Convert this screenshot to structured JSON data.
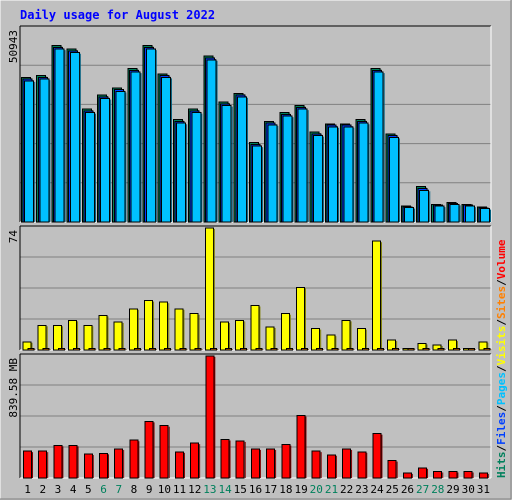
{
  "title": "Daily usage for August 2022",
  "colors": {
    "background": "#c0c0c0",
    "plot": "#c0c0c0",
    "grid": "#808080",
    "title": "#0000ff",
    "hits": "#00805c",
    "files": "#0040ff",
    "pages": "#00c0ff",
    "visits": "#ffff00",
    "sites": "#ff8000",
    "volume": "#ff0000",
    "weekday": "#000000",
    "weekend": "#00805c"
  },
  "chart_data": [
    {
      "type": "bar",
      "panel": "hits-files-pages",
      "ymax_label": "50943",
      "ylim": [
        0,
        55000
      ],
      "series": [
        {
          "name": "Hits",
          "values": [
            41000,
            41500,
            50000,
            49000,
            32000,
            36000,
            38000,
            43500,
            50000,
            42000,
            29000,
            32000,
            47000,
            34000,
            36500,
            22500,
            28500,
            31000,
            33000,
            25500,
            27800,
            27800,
            29000,
            43500,
            25000,
            4500,
            10000,
            5000,
            5500,
            5000,
            4200
          ]
        },
        {
          "name": "Files",
          "values": [
            40500,
            41000,
            49500,
            48500,
            31500,
            35500,
            37500,
            43000,
            49500,
            41500,
            28500,
            31500,
            46500,
            33500,
            36000,
            22000,
            28000,
            30500,
            32500,
            25000,
            27500,
            27500,
            28500,
            43000,
            24500,
            4300,
            9500,
            4800,
            5300,
            4800,
            4000
          ]
        },
        {
          "name": "Pages",
          "values": [
            40000,
            40500,
            49000,
            48000,
            31000,
            35000,
            37000,
            42500,
            49000,
            41000,
            28000,
            31000,
            46000,
            33000,
            35500,
            21500,
            27500,
            30000,
            32000,
            24500,
            27000,
            27000,
            28000,
            42500,
            24000,
            4100,
            9000,
            4500,
            5000,
            4500,
            3800
          ]
        }
      ]
    },
    {
      "type": "bar",
      "panel": "visits-sites",
      "ymax_label": "74",
      "ylim": [
        0,
        74
      ],
      "series": [
        {
          "name": "Visits",
          "values": [
            5,
            15,
            15,
            18,
            15,
            21,
            17,
            25,
            30,
            29,
            25,
            22,
            74,
            17,
            18,
            27,
            14,
            22,
            38,
            13,
            9,
            18,
            13,
            66,
            6,
            1,
            4,
            3,
            6,
            1,
            5
          ]
        },
        {
          "name": "Sites",
          "values": [
            1,
            1,
            1,
            1,
            1,
            1,
            1,
            1,
            1,
            1,
            1,
            1,
            1,
            1,
            1,
            1,
            1,
            1,
            1,
            1,
            1,
            1,
            1,
            1,
            1,
            1,
            1,
            1,
            1,
            1,
            1
          ]
        }
      ]
    },
    {
      "type": "bar",
      "panel": "volume",
      "ymax_label": "839.58 MB",
      "ylim": [
        0,
        839.58
      ],
      "series": [
        {
          "name": "Volume",
          "values": [
            185,
            185,
            225,
            225,
            165,
            170,
            200,
            260,
            390,
            360,
            180,
            240,
            840,
            265,
            255,
            200,
            200,
            230,
            430,
            185,
            160,
            200,
            180,
            305,
            120,
            35,
            70,
            45,
            45,
            45,
            35
          ]
        }
      ]
    }
  ],
  "days": [
    {
      "label": "1",
      "weekend": false
    },
    {
      "label": "2",
      "weekend": false
    },
    {
      "label": "3",
      "weekend": false
    },
    {
      "label": "4",
      "weekend": false
    },
    {
      "label": "5",
      "weekend": false
    },
    {
      "label": "6",
      "weekend": true
    },
    {
      "label": "7",
      "weekend": true
    },
    {
      "label": "8",
      "weekend": false
    },
    {
      "label": "9",
      "weekend": false
    },
    {
      "label": "10",
      "weekend": false
    },
    {
      "label": "11",
      "weekend": false
    },
    {
      "label": "12",
      "weekend": false
    },
    {
      "label": "13",
      "weekend": true
    },
    {
      "label": "14",
      "weekend": true
    },
    {
      "label": "15",
      "weekend": false
    },
    {
      "label": "16",
      "weekend": false
    },
    {
      "label": "17",
      "weekend": false
    },
    {
      "label": "18",
      "weekend": false
    },
    {
      "label": "19",
      "weekend": false
    },
    {
      "label": "20",
      "weekend": true
    },
    {
      "label": "21",
      "weekend": true
    },
    {
      "label": "22",
      "weekend": false
    },
    {
      "label": "23",
      "weekend": false
    },
    {
      "label": "24",
      "weekend": false
    },
    {
      "label": "25",
      "weekend": false
    },
    {
      "label": "26",
      "weekend": false
    },
    {
      "label": "27",
      "weekend": true
    },
    {
      "label": "28",
      "weekend": true
    },
    {
      "label": "29",
      "weekend": false
    },
    {
      "label": "30",
      "weekend": false
    },
    {
      "label": "31",
      "weekend": false
    }
  ],
  "legend_right": [
    {
      "text": "Hits",
      "color": "#00805c"
    },
    {
      "text": "/",
      "color": "#000000"
    },
    {
      "text": "Files",
      "color": "#0040ff"
    },
    {
      "text": "/",
      "color": "#000000"
    },
    {
      "text": "Pages",
      "color": "#00c0ff"
    },
    {
      "text": "/",
      "color": "#000000"
    },
    {
      "text": "Visits",
      "color": "#ffff00"
    },
    {
      "text": "/",
      "color": "#000000"
    },
    {
      "text": "Sites",
      "color": "#ff8000"
    },
    {
      "text": "/",
      "color": "#000000"
    },
    {
      "text": "Volume",
      "color": "#ff0000"
    }
  ]
}
